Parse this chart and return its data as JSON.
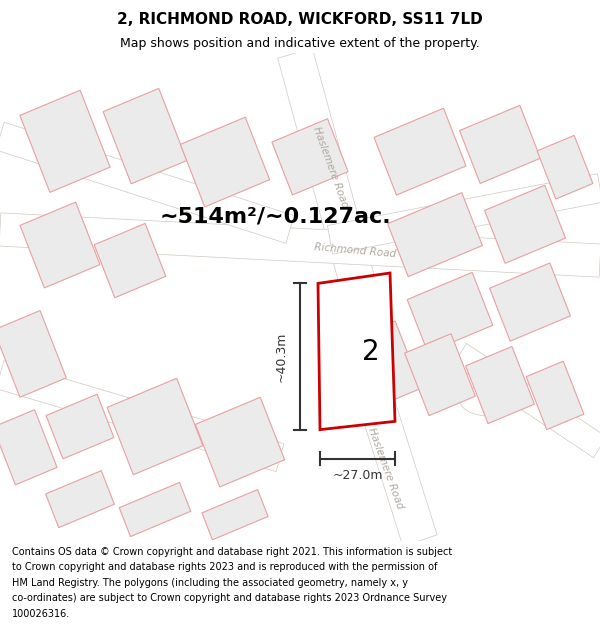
{
  "title": "2, RICHMOND ROAD, WICKFORD, SS11 7LD",
  "subtitle": "Map shows position and indicative extent of the property.",
  "footer_lines": [
    "Contains OS data © Crown copyright and database right 2021. This information is subject",
    "to Crown copyright and database rights 2023 and is reproduced with the permission of",
    "HM Land Registry. The polygons (including the associated geometry, namely x, y",
    "co-ordinates) are subject to Crown copyright and database rights 2023 Ordnance Survey",
    "100026316."
  ],
  "area_label": "~514m²/~0.127ac.",
  "plot_number": "2",
  "dim_width": "~27.0m",
  "dim_height": "~40.3m",
  "bg_color": "#ffffff",
  "building_fill": "#ebebeb",
  "building_edge": "#e8a0a0",
  "road_line_color": "#d0c8c0",
  "road_label_color": "#b0a8a0",
  "red_color": "#cc0000",
  "dim_color": "#333333",
  "figsize": [
    6.0,
    6.25
  ],
  "dpi": 100,
  "title_fontsize": 11,
  "subtitle_fontsize": 9,
  "area_fontsize": 16,
  "plot_num_fontsize": 20,
  "dim_fontsize": 9,
  "footer_fontsize": 7.0
}
